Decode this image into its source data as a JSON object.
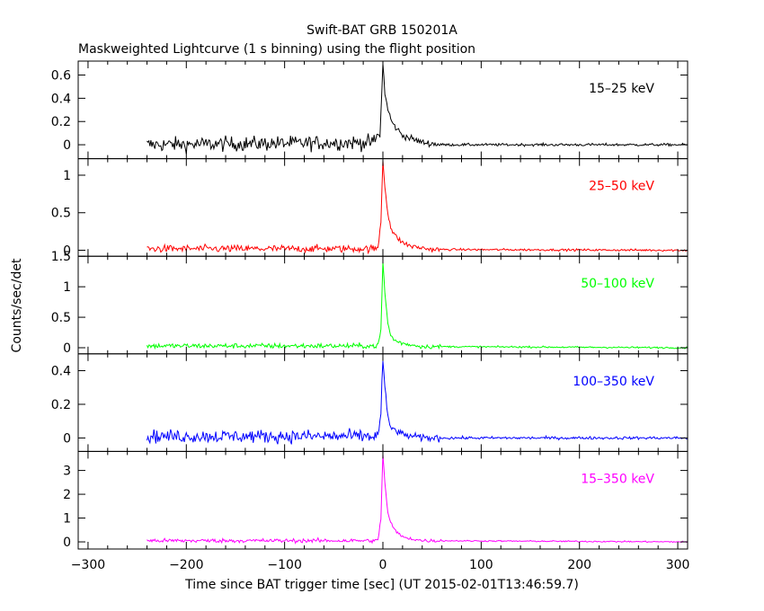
{
  "chart_data": {
    "type": "line",
    "title": "Swift-BAT GRB 150201A",
    "subtitle": "Maskweighted Lightcurve (1 s binning) using the flight position",
    "xlabel": "Time since BAT trigger time [sec] (UT 2015-02-01T13:46:59.7)",
    "ylabel": "Counts/sec/det",
    "xlim": [
      -310,
      310
    ],
    "x_ticks": [
      -300,
      -200,
      -100,
      0,
      100,
      200,
      300
    ],
    "data_start": -240,
    "grid": false,
    "legend": "inside each panel, top-right",
    "panels": [
      {
        "band": "15–25 keV",
        "color": "#000000",
        "ylim": [
          -0.12,
          0.72
        ],
        "y_ticks": [
          0,
          0.2,
          0.4,
          0.6
        ],
        "y_tick_labels": [
          "0",
          "0.2",
          "0.4",
          "0.6"
        ],
        "noise_pre": 0.045,
        "noise_post": 0.008,
        "profile": [
          [
            -240,
            0
          ],
          [
            -10,
            0.02
          ],
          [
            -3,
            0.1
          ],
          [
            -1,
            0.45
          ],
          [
            0,
            0.7
          ],
          [
            2,
            0.45
          ],
          [
            5,
            0.3
          ],
          [
            10,
            0.18
          ],
          [
            20,
            0.08
          ],
          [
            40,
            0.02
          ],
          [
            60,
            0
          ],
          [
            310,
            0
          ]
        ]
      },
      {
        "band": "25–50 keV",
        "color": "#ff0000",
        "ylim": [
          -0.08,
          1.22
        ],
        "y_ticks": [
          0,
          0.5,
          1
        ],
        "y_tick_labels": [
          "0",
          "0.5",
          "1"
        ],
        "noise_pre": 0.035,
        "noise_post": 0.01,
        "profile": [
          [
            -240,
            0.02
          ],
          [
            -5,
            0.02
          ],
          [
            -2,
            0.4
          ],
          [
            0,
            1.2
          ],
          [
            2,
            0.85
          ],
          [
            5,
            0.5
          ],
          [
            8,
            0.3
          ],
          [
            12,
            0.2
          ],
          [
            20,
            0.1
          ],
          [
            30,
            0.05
          ],
          [
            50,
            0.01
          ],
          [
            310,
            0
          ]
        ]
      },
      {
        "band": "50–100 keV",
        "color": "#00ff00",
        "ylim": [
          -0.1,
          1.5
        ],
        "y_ticks": [
          0,
          0.5,
          1,
          1.5
        ],
        "y_tick_labels": [
          "0",
          "0.5",
          "1",
          "1.5"
        ],
        "noise_pre": 0.03,
        "noise_post": 0.01,
        "profile": [
          [
            -240,
            0.03
          ],
          [
            -5,
            0.03
          ],
          [
            -2,
            0.3
          ],
          [
            0,
            1.4
          ],
          [
            2,
            0.9
          ],
          [
            5,
            0.4
          ],
          [
            8,
            0.2
          ],
          [
            12,
            0.12
          ],
          [
            20,
            0.07
          ],
          [
            40,
            0.02
          ],
          [
            310,
            0
          ]
        ]
      },
      {
        "band": "100–350 keV",
        "color": "#0000ff",
        "ylim": [
          -0.08,
          0.5
        ],
        "y_ticks": [
          0,
          0.2,
          0.4
        ],
        "y_tick_labels": [
          "0",
          "0.2",
          "0.4"
        ],
        "noise_pre": 0.028,
        "noise_post": 0.006,
        "profile": [
          [
            -240,
            0.01
          ],
          [
            -5,
            0.01
          ],
          [
            -2,
            0.15
          ],
          [
            0,
            0.47
          ],
          [
            2,
            0.3
          ],
          [
            5,
            0.12
          ],
          [
            8,
            0.06
          ],
          [
            12,
            0.05
          ],
          [
            20,
            0.02
          ],
          [
            40,
            0
          ],
          [
            310,
            0
          ]
        ]
      },
      {
        "band": "15–350 keV",
        "color": "#ff00ff",
        "ylim": [
          -0.3,
          3.8
        ],
        "y_ticks": [
          0,
          1,
          2,
          3
        ],
        "y_tick_labels": [
          "0",
          "1",
          "2",
          "3"
        ],
        "noise_pre": 0.06,
        "noise_post": 0.02,
        "profile": [
          [
            -240,
            0.05
          ],
          [
            -5,
            0.05
          ],
          [
            -2,
            1
          ],
          [
            0,
            3.7
          ],
          [
            2,
            2.5
          ],
          [
            5,
            1.2
          ],
          [
            8,
            0.8
          ],
          [
            12,
            0.5
          ],
          [
            20,
            0.2
          ],
          [
            40,
            0.05
          ],
          [
            310,
            0
          ]
        ]
      }
    ]
  }
}
